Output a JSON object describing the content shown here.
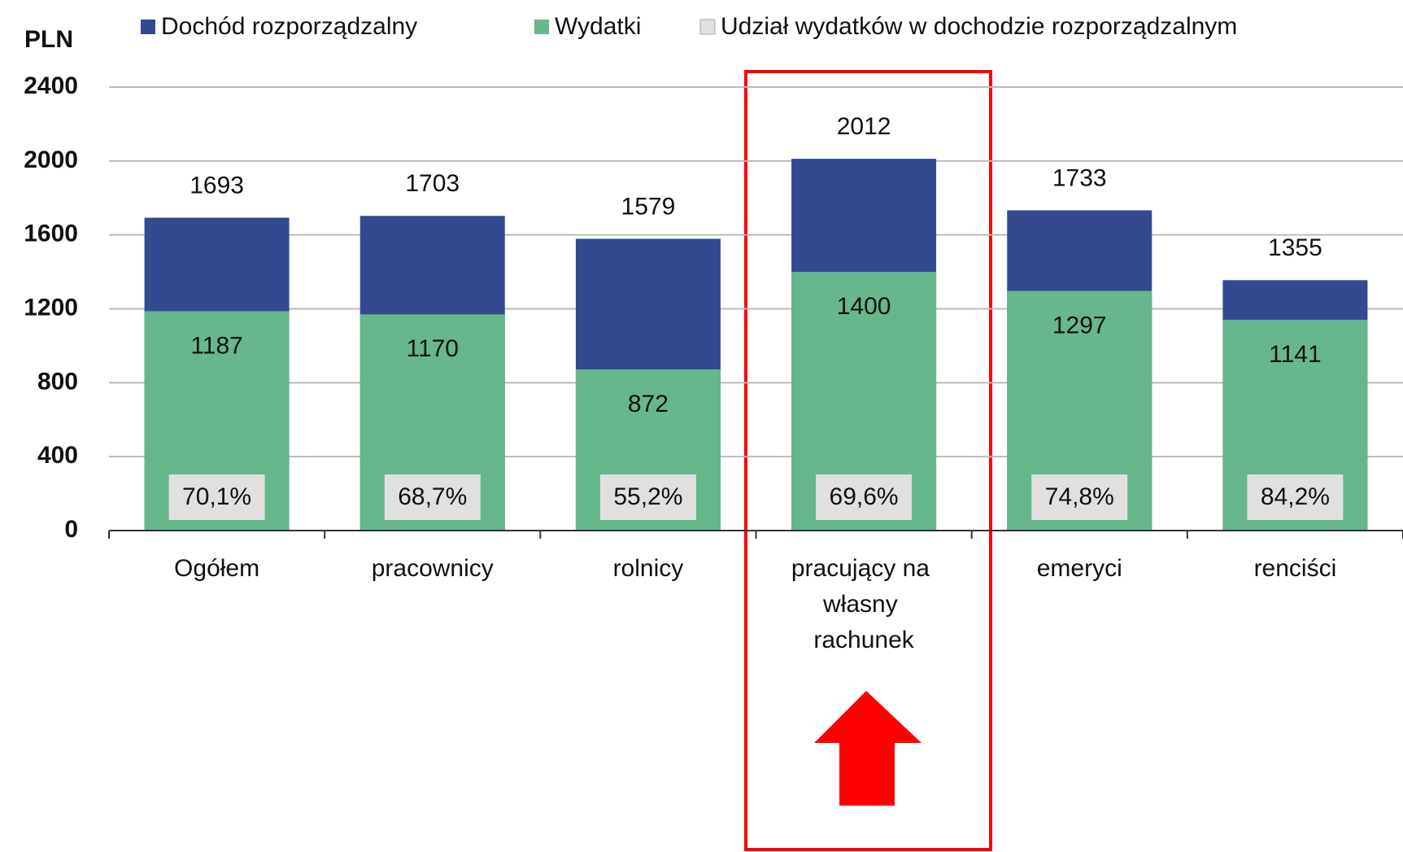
{
  "chart_data": {
    "type": "bar",
    "y_axis_label": "PLN",
    "categories": [
      "Ogółem",
      "pracownicy",
      "rolnicy",
      "pracujący na własny rachunek",
      "emeryci",
      "renciści"
    ],
    "series": [
      {
        "name": "Dochód rozporządzalny",
        "color": "#334a91",
        "values": [
          1693,
          1703,
          1579,
          2012,
          1733,
          1355
        ]
      },
      {
        "name": "Wydatki",
        "color": "#66b78c",
        "values": [
          1187,
          1170,
          872,
          1400,
          1297,
          1141
        ]
      },
      {
        "name": "Udział wydatków w dochodzie rozporządzalnym",
        "color": "#e0e0e0",
        "values": [
          70.1,
          68.7,
          55.2,
          69.6,
          74.8,
          84.2
        ],
        "value_labels": [
          "70,1%",
          "68,7%",
          "55,2%",
          "69,6%",
          "74,8%",
          "84,2%"
        ]
      }
    ],
    "ylim": [
      0,
      2400
    ],
    "yticks": [
      0,
      400,
      800,
      1200,
      1600,
      2000,
      2400
    ],
    "grid": true
  }
}
